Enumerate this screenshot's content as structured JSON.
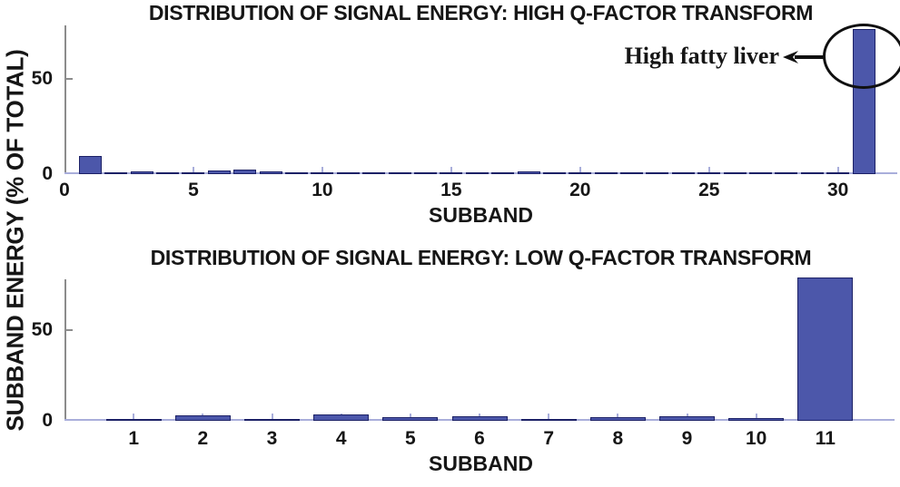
{
  "figure": {
    "shared_ylabel": "SUBBAND ENERGY (% OF TOTAL)",
    "background_color": "#ffffff",
    "bar_fill_color": "#4c57aa",
    "bar_edge_color": "#1c2166",
    "x_axis_color": "#a9aedb",
    "y_axis_color": "#8c8c8c",
    "text_color": "#161616"
  },
  "chart_data": [
    {
      "type": "bar",
      "title": "DISTRIBUTION OF SIGNAL ENERGY: HIGH Q-FACTOR TRANSFORM",
      "xlabel": "SUBBAND",
      "ylabel": "SUBBAND ENERGY (% OF TOTAL)",
      "x": [
        1,
        2,
        3,
        4,
        5,
        6,
        7,
        8,
        9,
        10,
        11,
        12,
        13,
        14,
        15,
        16,
        17,
        18,
        19,
        20,
        21,
        22,
        23,
        24,
        25,
        26,
        27,
        28,
        29,
        30,
        31
      ],
      "values": [
        9.5,
        0.9,
        1.3,
        0.25,
        0.15,
        1.7,
        2.4,
        1.6,
        1.1,
        0.15,
        0.3,
        0.8,
        0.7,
        0.1,
        0.7,
        0.1,
        0.15,
        1.2,
        0.1,
        0.2,
        0.1,
        0.6,
        0.7,
        0.1,
        0.1,
        0.5,
        0.1,
        0.15,
        0.5,
        1.1,
        76
      ],
      "xlim": [
        0,
        32.3
      ],
      "ylim": [
        0,
        78
      ],
      "xticks": [
        0,
        5,
        10,
        15,
        20,
        25,
        30
      ],
      "yticks": [
        0,
        50
      ],
      "grid": false,
      "annotation": {
        "text": "High fatty liver",
        "target": "bar at subband 31",
        "style": "ellipse circle with left-pointing arrow"
      }
    },
    {
      "type": "bar",
      "title": "DISTRIBUTION OF SIGNAL ENERGY: LOW Q-FACTOR TRANSFORM",
      "xlabel": "SUBBAND",
      "ylabel": "SUBBAND ENERGY (% OF TOTAL)",
      "x": [
        1,
        2,
        3,
        4,
        5,
        6,
        7,
        8,
        9,
        10,
        11
      ],
      "values": [
        0.9,
        3.0,
        1.2,
        3.3,
        2.0,
        2.6,
        0.4,
        2.2,
        2.6,
        1.6,
        79
      ],
      "xlim": [
        0,
        12
      ],
      "ylim": [
        0,
        78
      ],
      "xticks": [
        1,
        2,
        3,
        4,
        5,
        6,
        7,
        8,
        9,
        10,
        11
      ],
      "yticks": [
        0,
        50
      ],
      "grid": false
    }
  ]
}
